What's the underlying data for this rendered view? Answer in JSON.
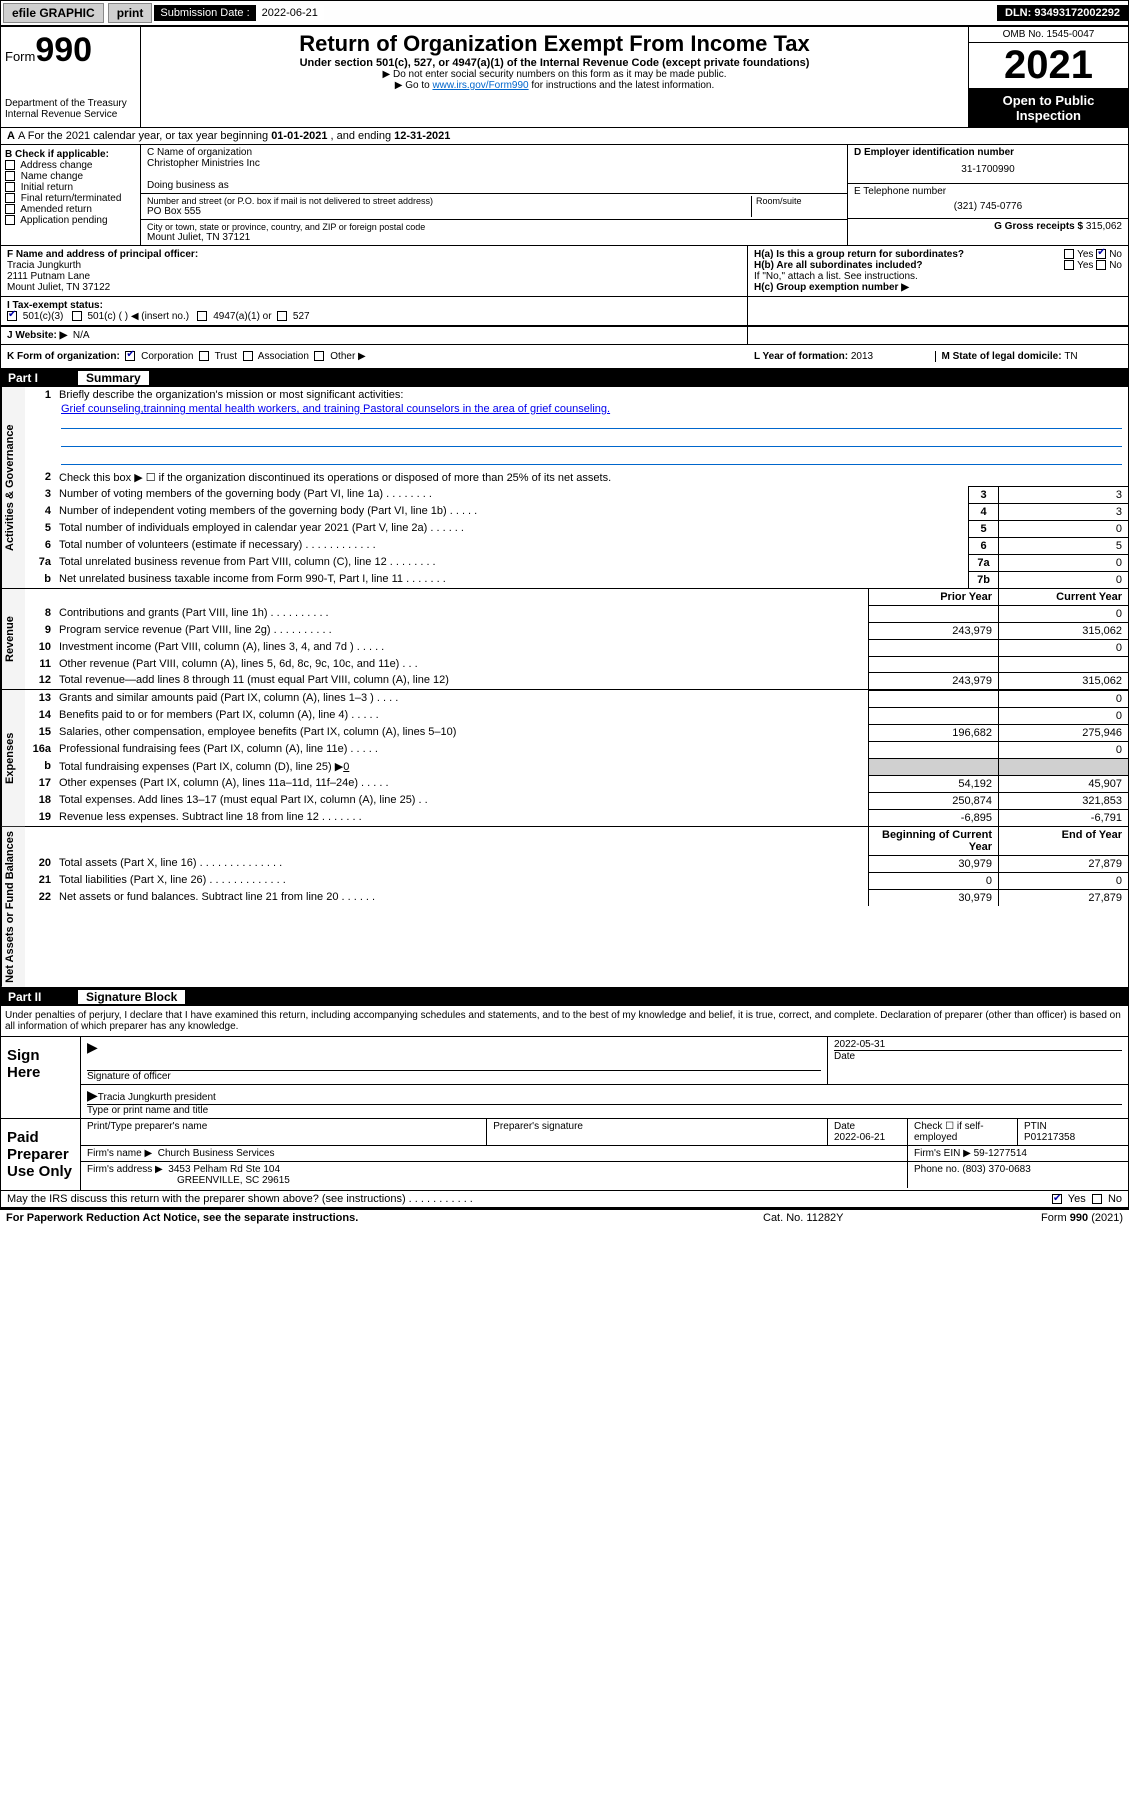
{
  "topbar": {
    "efile": "efile GRAPHIC",
    "print": "print",
    "sub_label": "Submission Date : ",
    "sub_date": "2022-06-21",
    "dln": "DLN: 93493172002292"
  },
  "header": {
    "form_prefix": "Form",
    "form_num": "990",
    "dept": "Department of the Treasury",
    "irs": "Internal Revenue Service",
    "title": "Return of Organization Exempt From Income Tax",
    "sub1": "Under section 501(c), 527, or 4947(a)(1) of the Internal Revenue Code (except private foundations)",
    "sub2": "▶ Do not enter social security numbers on this form as it may be made public.",
    "sub3a": "▶ Go to ",
    "sub3_link": "www.irs.gov/Form990",
    "sub3b": " for instructions and the latest information.",
    "omb": "OMB No. 1545-0047",
    "year": "2021",
    "open": "Open to Public Inspection"
  },
  "rowA": {
    "pre": "A For the 2021 calendar year, or tax year beginning ",
    "begin": "01-01-2021",
    "mid": " , and ending ",
    "end": "12-31-2021"
  },
  "boxB": {
    "title": "B Check if applicable:",
    "items": [
      "Address change",
      "Name change",
      "Initial return",
      "Final return/terminated",
      "Amended return",
      "Application pending"
    ]
  },
  "boxC": {
    "label_name": "C Name of organization",
    "org": "Christopher Ministries Inc",
    "dba_label": "Doing business as",
    "street_label": "Number and street (or P.O. box if mail is not delivered to street address)",
    "room_label": "Room/suite",
    "street": "PO Box 555",
    "city_label": "City or town, state or province, country, and ZIP or foreign postal code",
    "city": "Mount Juliet, TN  37121"
  },
  "boxD": {
    "label": "D Employer identification number",
    "ein": "31-1700990",
    "e_label": "E Telephone number",
    "phone": "(321) 745-0776",
    "g_label": "G Gross receipts $",
    "g_val": "315,062"
  },
  "boxF": {
    "label": "F Name and address of principal officer:",
    "name": "Tracia Jungkurth",
    "addr1": "2111 Putnam Lane",
    "addr2": "Mount Juliet, TN  37122"
  },
  "boxH": {
    "ha": "H(a)  Is this a group return for subordinates?",
    "hb": "H(b)  Are all subordinates included?",
    "hb_note": "If \"No,\" attach a list. See instructions.",
    "hc": "H(c)  Group exemption number ▶",
    "yes": "Yes",
    "no": "No"
  },
  "rowI": {
    "label": "I  Tax-exempt status:",
    "o1": "501(c)(3)",
    "o2": "501(c) (    ) ◀ (insert no.)",
    "o3": "4947(a)(1) or",
    "o4": "527"
  },
  "rowJ": {
    "label": "J  Website: ▶",
    "val": "N/A"
  },
  "rowK": {
    "label": "K Form of organization:",
    "o1": "Corporation",
    "o2": "Trust",
    "o3": "Association",
    "o4": "Other ▶",
    "l_label": "L Year of formation: ",
    "l_val": "2013",
    "m_label": "M State of legal domicile: ",
    "m_val": "TN"
  },
  "part1": {
    "num": "Part I",
    "title": "Summary"
  },
  "summary": {
    "gov_label": "Activities & Governance",
    "rev_label": "Revenue",
    "exp_label": "Expenses",
    "net_label": "Net Assets or Fund Balances",
    "line1_label": "Briefly describe the organization's mission or most significant activities:",
    "line1_text": "Grief counseling,trainning mental health workers, and training Pastoral counselors in the area of grief counseling.",
    "line2": "Check this box ▶ ☐  if the organization discontinued its operations or disposed of more than 25% of its net assets.",
    "prior_hdr": "Prior Year",
    "curr_hdr": "Current Year",
    "boy_hdr": "Beginning of Current Year",
    "eoy_hdr": "End of Year",
    "lines_gov": [
      {
        "n": "3",
        "t": "Number of voting members of the governing body (Part VI, line 1a)   .    .    .    .    .    .    .    .",
        "b": "3",
        "v": "3"
      },
      {
        "n": "4",
        "t": "Number of independent voting members of the governing body (Part VI, line 1b)   .    .    .    .    .",
        "b": "4",
        "v": "3"
      },
      {
        "n": "5",
        "t": "Total number of individuals employed in calendar year 2021 (Part V, line 2a)   .    .    .    .    .    .",
        "b": "5",
        "v": "0"
      },
      {
        "n": "6",
        "t": "Total number of volunteers (estimate if necessary)   .    .    .    .    .    .    .    .    .    .    .    .",
        "b": "6",
        "v": "5"
      },
      {
        "n": "7a",
        "t": "Total unrelated business revenue from Part VIII, column (C), line 12   .    .    .    .    .    .    .    .",
        "b": "7a",
        "v": "0"
      },
      {
        "n": "b",
        "t": "Net unrelated business taxable income from Form 990-T, Part I, line 11   .    .    .    .    .    .    .",
        "b": "7b",
        "v": "0"
      }
    ],
    "lines_rev": [
      {
        "n": "8",
        "t": "Contributions and grants (Part VIII, line 1h)   .    .    .    .    .    .    .    .    .    .",
        "p": "",
        "c": "0"
      },
      {
        "n": "9",
        "t": "Program service revenue (Part VIII, line 2g)   .    .    .    .    .    .    .    .    .    .",
        "p": "243,979",
        "c": "315,062"
      },
      {
        "n": "10",
        "t": "Investment income (Part VIII, column (A), lines 3, 4, and 7d )   .    .    .    .    .",
        "p": "",
        "c": "0"
      },
      {
        "n": "11",
        "t": "Other revenue (Part VIII, column (A), lines 5, 6d, 8c, 9c, 10c, and 11e)   .    .    .",
        "p": "",
        "c": ""
      },
      {
        "n": "12",
        "t": "Total revenue—add lines 8 through 11 (must equal Part VIII, column (A), line 12)",
        "p": "243,979",
        "c": "315,062"
      }
    ],
    "lines_exp": [
      {
        "n": "13",
        "t": "Grants and similar amounts paid (Part IX, column (A), lines 1–3 )   .    .    .    .",
        "p": "",
        "c": "0"
      },
      {
        "n": "14",
        "t": "Benefits paid to or for members (Part IX, column (A), line 4)   .    .    .    .    .",
        "p": "",
        "c": "0"
      },
      {
        "n": "15",
        "t": "Salaries, other compensation, employee benefits (Part IX, column (A), lines 5–10)",
        "p": "196,682",
        "c": "275,946"
      },
      {
        "n": "16a",
        "t": "Professional fundraising fees (Part IX, column (A), line 11e)   .    .    .    .    .",
        "p": "",
        "c": "0"
      }
    ],
    "line16b": {
      "n": "b",
      "t": "Total fundraising expenses (Part IX, column (D), line 25) ▶",
      "v": "0"
    },
    "lines_exp2": [
      {
        "n": "17",
        "t": "Other expenses (Part IX, column (A), lines 11a–11d, 11f–24e)   .    .    .    .    .",
        "p": "54,192",
        "c": "45,907"
      },
      {
        "n": "18",
        "t": "Total expenses. Add lines 13–17 (must equal Part IX, column (A), line 25)   .    .",
        "p": "250,874",
        "c": "321,853"
      },
      {
        "n": "19",
        "t": "Revenue less expenses. Subtract line 18 from line 12   .    .    .    .    .    .    .",
        "p": "-6,895",
        "c": "-6,791"
      }
    ],
    "lines_net": [
      {
        "n": "20",
        "t": "Total assets (Part X, line 16)   .    .    .    .    .    .    .    .    .    .    .    .    .    .",
        "p": "30,979",
        "c": "27,879"
      },
      {
        "n": "21",
        "t": "Total liabilities (Part X, line 26)   .    .    .    .    .    .    .    .    .    .    .    .    .",
        "p": "0",
        "c": "0"
      },
      {
        "n": "22",
        "t": "Net assets or fund balances. Subtract line 21 from line 20   .    .    .    .    .    .",
        "p": "30,979",
        "c": "27,879"
      }
    ]
  },
  "part2": {
    "num": "Part II",
    "title": "Signature Block"
  },
  "sig": {
    "intro": "Under penalties of perjury, I declare that I have examined this return, including accompanying schedules and statements, and to the best of my knowledge and belief, it is true, correct, and complete. Declaration of preparer (other than officer) is based on all information of which preparer has any knowledge.",
    "sign_here": "Sign Here",
    "sig_officer": "Signature of officer",
    "date_label": "Date",
    "date_val": "2022-05-31",
    "name_title": "Tracia Jungkurth  president",
    "type_name": "Type or print name and title",
    "paid": "Paid Preparer Use Only",
    "col1": "Print/Type preparer's name",
    "col2": "Preparer's signature",
    "col3_label": "Date",
    "col3_val": "2022-06-21",
    "col4_label": "Check ☐ if self-employed",
    "col5_label": "PTIN",
    "col5_val": "P01217358",
    "firm_name_label": "Firm's name    ▶",
    "firm_name": "Church Business Services",
    "firm_ein_label": "Firm's EIN ▶",
    "firm_ein": "59-1277514",
    "firm_addr_label": "Firm's address ▶",
    "firm_addr1": "3453 Pelham Rd Ste 104",
    "firm_addr2": "GREENVILLE, SC  29615",
    "phone_label": "Phone no.",
    "phone": "(803) 370-0683"
  },
  "may_irs": {
    "q": "May the IRS discuss this return with the preparer shown above? (see instructions)   .    .    .    .    .    .    .    .    .    .    .",
    "yes": "Yes",
    "no": "No"
  },
  "footer": {
    "l": "For Paperwork Reduction Act Notice, see the separate instructions.",
    "m": "Cat. No. 11282Y",
    "r": "Form 990 (2021)"
  }
}
